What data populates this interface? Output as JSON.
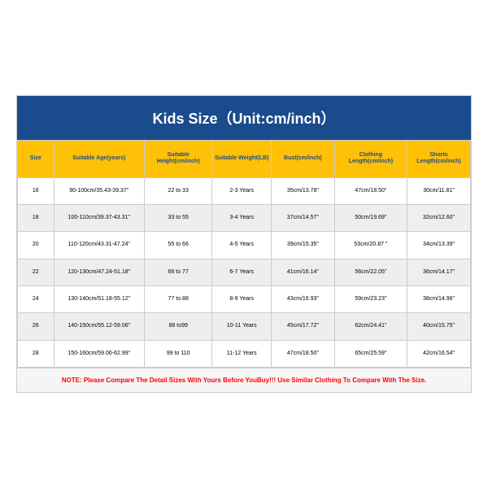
{
  "title": "Kids Size（Unit:cm/inch）",
  "title_bg": "#1a4b8c",
  "title_color": "#ffffff",
  "title_fontsize": 18,
  "header_bg": "#ffc107",
  "header_color": "#1a4b8c",
  "row_even_bg": "#ffffff",
  "row_odd_bg": "#eeeeee",
  "note_color": "#ff0000",
  "note_bg": "#f5f5f5",
  "columns": [
    "Size",
    "Suitable Age(years)",
    "Suitable Height(cm/inch)",
    "Suitable Weight(LB)",
    "Bust(cm/inch)",
    "Clothing Length(cm/inch)",
    "Shorts Length(cm/inch)"
  ],
  "rows": [
    [
      "16",
      "90-100cm/35.43-39.37\"",
      "22 to 33",
      "2-3 Years",
      "35cm/13.78\"",
      "47cm/18.50\"",
      "30cm/11.81\""
    ],
    [
      "18",
      "100-110cm/39.37-43.31\"",
      "33 to 55",
      "3-4 Years",
      "37cm/14.57\"",
      "50cm/19.69\"",
      "32cm/12.60\""
    ],
    [
      "20",
      "110-120cm/43.31-47.24\"",
      "55 to 66",
      "4-5 Years",
      "39cm/15.35\"",
      "53cm/20.87 \"",
      "34cm/13.39\""
    ],
    [
      "22",
      "120-130cm/47.24-51.18\"",
      "66 to 77",
      "6-7 Years",
      "41cm/16.14\"",
      "56cm/22.05\"",
      "36cm/14.17\""
    ],
    [
      "24",
      "130-140cm/51.18-55.12\"",
      "77 to 88",
      "8-9 Years",
      "43cm/16.93\"",
      "59cm/23.23\"",
      "38cm/14.96\""
    ],
    [
      "26",
      "140-150cm/55.12-59.06\"",
      "88 to99",
      "10-11 Years",
      "45cm/17.72\"",
      "62cm/24.41\"",
      "40cm/15.75\""
    ],
    [
      "28",
      "150-160cm/59.06-62.99\"",
      "99 to 110",
      "11-12 Years",
      "47cm/18.50\"",
      "65cm/25.59\"",
      "42cm/16.54\""
    ]
  ],
  "note": "NOTE: Please Compare The Detail Sizes With Yours Before YouBuy!!! Use Similar Clothing To Compare With The Size."
}
